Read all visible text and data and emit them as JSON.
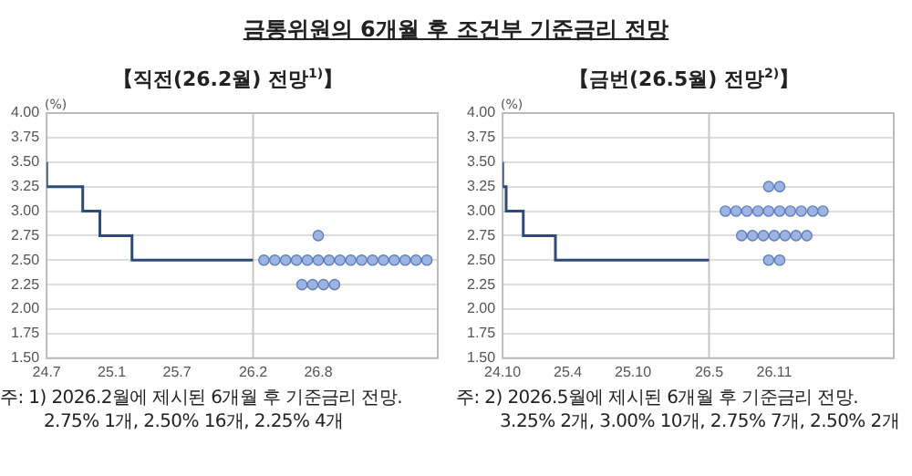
{
  "chart_data": [
    {
      "type": "step",
      "title": "금통위원의 6개월 후 조건부 기준금리 전망",
      "subtitle": "【직전(26.2월) 전망$^{1)}$】",
      "ylabel": "(%)",
      "xlim": [
        "2024-07",
        "2027-07"
      ],
      "xticks": [
        {
          "value": "2024-07",
          "label": "24.7"
        },
        {
          "value": "2025-01",
          "label": "25.1"
        },
        {
          "value": "2025-07",
          "label": "25.7"
        },
        {
          "value": "2026-02",
          "label": "26.2"
        },
        {
          "value": "2026-08",
          "label": "26.8"
        }
      ],
      "ylim": [
        1.5,
        4
      ],
      "yticks": [
        {
          "value": 1.5,
          "label": "1.50"
        },
        {
          "value": 1.75,
          "label": "1.75"
        },
        {
          "value": 2,
          "label": "2.00"
        },
        {
          "value": 2.25,
          "label": "2.25"
        },
        {
          "value": 2.5,
          "label": "2.50"
        },
        {
          "value": 2.75,
          "label": "2.75"
        },
        {
          "value": 3,
          "label": "3.00"
        },
        {
          "value": 3.25,
          "label": "3.25"
        },
        {
          "value": 3.5,
          "label": "3.50"
        },
        {
          "value": 3.75,
          "label": "3.75"
        },
        {
          "value": 4,
          "label": "4.00"
        }
      ],
      "grid": "y",
      "legend": false,
      "ref_lines": [
        {
          "axis": "x",
          "value": "2026-02",
          "color": "#c8c8c8"
        }
      ],
      "series": [
        {
          "type": "step",
          "color": "#2e4a78",
          "x": [
            "2024-07",
            "2024-10-11",
            "2024-11-28",
            "2025-02-25",
            "2025-05-29",
            "2026-02"
          ],
          "values": [
            3.5,
            3.25,
            3,
            2.75,
            2.5,
            2.5
          ]
        },
        {
          "type": "scatter",
          "marker": "circle",
          "color": "#9db4e3",
          "x": [
            "2026-08",
            "2026-03",
            "2026-04",
            "2026-05",
            "2026-06",
            "2026-07",
            "2026-08",
            "2026-09",
            "2026-10",
            "2026-11",
            "2026-12",
            "2027-01",
            "2027-02",
            "2027-03",
            "2027-04",
            "2027-05",
            "2027-06",
            "2026-06-16",
            "2026-07-16",
            "2026-08-16",
            "2026-09-16"
          ],
          "values": [
            2.75,
            2.5,
            2.5,
            2.5,
            2.5,
            2.5,
            2.5,
            2.5,
            2.5,
            2.5,
            2.5,
            2.5,
            2.5,
            2.5,
            2.5,
            2.5,
            2.5,
            2.25,
            2.25,
            2.25,
            2.25
          ]
        }
      ],
      "annotations": [
        "주: 1) 2026.2월에 제시된 6개월 후 기준금리 전망.",
        "2.75% 1개,  2.50% 16개,  2.25% 4개"
      ]
    },
    {
      "type": "step",
      "subtitle": "【금번(26.5월) 전망$^{2)}$】",
      "ylabel": "(%)",
      "xlim": [
        "2024-10",
        "2027-10"
      ],
      "xticks": [
        {
          "value": "2024-10",
          "label": "24.10"
        },
        {
          "value": "2025-04",
          "label": "25.4"
        },
        {
          "value": "2025-10",
          "label": "25.10"
        },
        {
          "value": "2026-05",
          "label": "26.5"
        },
        {
          "value": "2026-11",
          "label": "26.11"
        }
      ],
      "ylim": [
        1.5,
        4
      ],
      "yticks": [
        {
          "value": 1.5,
          "label": "1.50"
        },
        {
          "value": 1.75,
          "label": "1.75"
        },
        {
          "value": 2,
          "label": "2.00"
        },
        {
          "value": 2.25,
          "label": "2.25"
        },
        {
          "value": 2.5,
          "label": "2.50"
        },
        {
          "value": 2.75,
          "label": "2.75"
        },
        {
          "value": 3,
          "label": "3.00"
        },
        {
          "value": 3.25,
          "label": "3.25"
        },
        {
          "value": 3.5,
          "label": "3.50"
        },
        {
          "value": 3.75,
          "label": "3.75"
        },
        {
          "value": 4,
          "label": "4.00"
        }
      ],
      "grid": "y",
      "legend": false,
      "ref_lines": [
        {
          "axis": "x",
          "value": "2026-05",
          "color": "#c8c8c8"
        }
      ],
      "series": [
        {
          "type": "step",
          "color": "#2e4a78",
          "x": [
            "2024-10",
            "2024-10-11",
            "2024-11-28",
            "2025-02-25",
            "2025-05-29",
            "2026-05"
          ],
          "values": [
            3.5,
            3.25,
            3,
            2.75,
            2.5,
            2.5
          ]
        },
        {
          "type": "scatter",
          "marker": "circle",
          "color": "#9db4e3",
          "x": [
            "2026-10-16",
            "2026-11-16",
            "2026-06-16",
            "2026-07-16",
            "2026-08-16",
            "2026-09-16",
            "2026-10-16",
            "2026-11-16",
            "2026-12-16",
            "2027-01-16",
            "2027-02-16",
            "2027-03-16",
            "2026-08",
            "2026-09",
            "2026-10",
            "2026-11",
            "2026-12",
            "2027-01",
            "2027-02",
            "2026-10-16",
            "2026-11-16"
          ],
          "values": [
            3.25,
            3.25,
            3,
            3,
            3,
            3,
            3,
            3,
            3,
            3,
            3,
            3,
            2.75,
            2.75,
            2.75,
            2.75,
            2.75,
            2.75,
            2.75,
            2.5,
            2.5
          ]
        }
      ],
      "annotations": [
        "주: 2) 2026.5월에 제시된 6개월 후 기준금리 전망.",
        "3.25% 2개,  3.00% 10개,  2.75% 7개,  2.50% 2개"
      ]
    }
  ]
}
